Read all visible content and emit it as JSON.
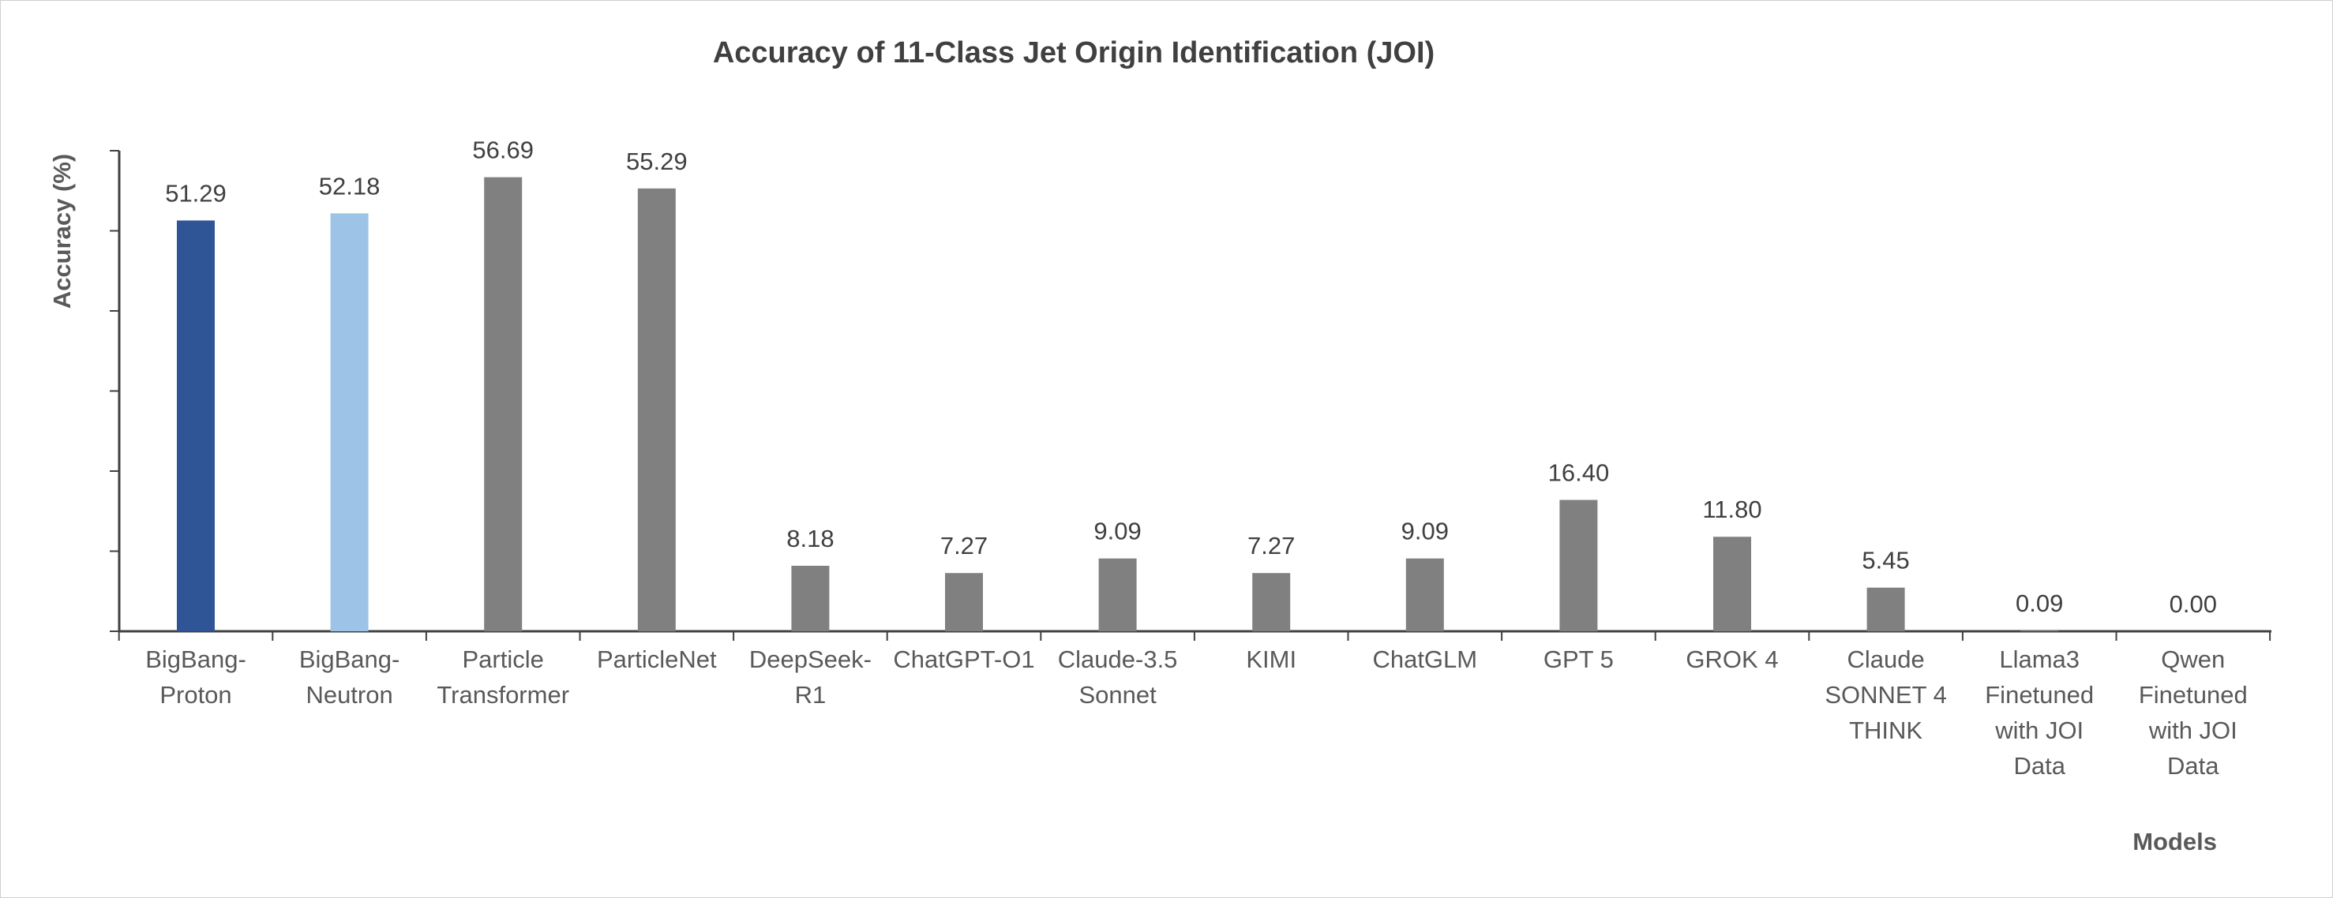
{
  "chart_data": {
    "type": "bar",
    "title": "Accuracy of 11-Class Jet Origin Identification (JOI)",
    "xlabel": "Models",
    "ylabel": "Accuracy (%)",
    "ylim": [
      0,
      60
    ],
    "y_tick_labels_shown": false,
    "grid": false,
    "legend": "none",
    "categories": [
      [
        "BigBang-",
        "Proton"
      ],
      [
        "BigBang-",
        "Neutron"
      ],
      [
        "Particle",
        "Transformer"
      ],
      [
        "ParticleNet"
      ],
      [
        "DeepSeek-",
        "R1"
      ],
      [
        "ChatGPT-O1"
      ],
      [
        "Claude-3.5",
        "Sonnet"
      ],
      [
        "KIMI"
      ],
      [
        "ChatGLM"
      ],
      [
        "GPT 5"
      ],
      [
        "GROK 4"
      ],
      [
        "Claude",
        "SONNET 4",
        "THINK"
      ],
      [
        "Llama3",
        "Finetuned",
        "with JOI",
        "Data"
      ],
      [
        "Qwen",
        "Finetuned",
        "with JOI",
        "Data"
      ]
    ],
    "values": [
      51.29,
      52.18,
      56.69,
      55.29,
      8.18,
      7.27,
      9.09,
      7.27,
      9.09,
      16.4,
      11.8,
      5.45,
      0.09,
      0.0
    ],
    "data_labels": [
      "51.29",
      "52.18",
      "56.69",
      "55.29",
      "8.18",
      "7.27",
      "9.09",
      "7.27",
      "9.09",
      "16.40",
      "11.80",
      "5.45",
      "0.09",
      "0.00"
    ],
    "bar_colors": [
      "#2f5597",
      "#9dc3e6",
      "#808080",
      "#808080",
      "#808080",
      "#808080",
      "#808080",
      "#808080",
      "#808080",
      "#808080",
      "#808080",
      "#808080",
      "#808080",
      "#808080"
    ],
    "axis_color": "#404040"
  }
}
